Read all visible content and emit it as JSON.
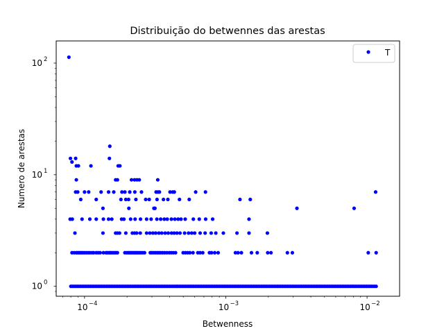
{
  "chart_data": {
    "type": "scatter",
    "title": "Distribuição do betwennes das arestas",
    "xlabel": "Betwenness",
    "ylabel": "Numero de arestas",
    "xscale": "log",
    "yscale": "log",
    "xlim": [
      6.3e-05,
      0.017
    ],
    "ylim": [
      0.815,
      158
    ],
    "x_ticks": [
      {
        "value": 0.0001,
        "base": "10",
        "exp": "−4"
      },
      {
        "value": 0.001,
        "base": "10",
        "exp": "−3"
      },
      {
        "value": 0.01,
        "base": "10",
        "exp": "−2"
      }
    ],
    "y_ticks": [
      {
        "value": 1,
        "base": "10",
        "exp": "0"
      },
      {
        "value": 10,
        "base": "10",
        "exp": "1"
      },
      {
        "value": 100,
        "base": "10",
        "exp": "2"
      }
    ],
    "grid": false,
    "legend": {
      "position": "top-right",
      "entries": [
        "T"
      ]
    },
    "marker_color": "#0000ff",
    "series": [
      {
        "name": "T",
        "points": [
          [
            7.75e-05,
            113
          ],
          [
            7.95e-05,
            14
          ],
          [
            8.65e-05,
            14
          ],
          [
            8.15e-05,
            13
          ],
          [
            8.75e-05,
            12
          ],
          [
            9.05e-05,
            12
          ],
          [
            0.000111,
            12
          ],
          [
            0.000151,
            18
          ],
          [
            0.00015,
            14
          ],
          [
            0.000173,
            12
          ],
          [
            0.000178,
            12
          ],
          [
            0.000215,
            9
          ],
          [
            0.000226,
            9
          ],
          [
            0.000235,
            9
          ],
          [
            0.000244,
            9
          ],
          [
            0.00033,
            9
          ],
          [
            8.75e-05,
            9
          ],
          [
            0.000166,
            9
          ],
          [
            0.000171,
            9
          ],
          [
            8.65e-05,
            7
          ],
          [
            8.95e-05,
            7
          ],
          [
            0.0001,
            7
          ],
          [
            0.000107,
            7
          ],
          [
            0.000131,
            7
          ],
          [
            0.000148,
            7
          ],
          [
            0.000161,
            7
          ],
          [
            0.000184,
            7
          ],
          [
            0.000193,
            7
          ],
          [
            0.000209,
            7
          ],
          [
            0.000227,
            7
          ],
          [
            0.000253,
            7
          ],
          [
            0.000321,
            7
          ],
          [
            0.000331,
            7
          ],
          [
            0.000339,
            7
          ],
          [
            0.000403,
            7
          ],
          [
            0.000421,
            7
          ],
          [
            0.000432,
            7
          ],
          [
            0.000612,
            7
          ],
          [
            0.000718,
            7
          ],
          [
            0.0115,
            7
          ],
          [
            9.4e-05,
            6
          ],
          [
            0.000121,
            6
          ],
          [
            0.000181,
            6
          ],
          [
            0.000196,
            6
          ],
          [
            0.000205,
            6
          ],
          [
            0.000231,
            6
          ],
          [
            0.000271,
            6
          ],
          [
            0.000287,
            6
          ],
          [
            0.000326,
            6
          ],
          [
            0.000362,
            6
          ],
          [
            0.000389,
            6
          ],
          [
            0.00047,
            6
          ],
          [
            0.000551,
            6
          ],
          [
            0.00126,
            6
          ],
          [
            0.00149,
            6
          ],
          [
            0.000135,
            5
          ],
          [
            0.000206,
            5
          ],
          [
            0.000315,
            5
          ],
          [
            0.00031,
            5
          ],
          [
            0.00319,
            5
          ],
          [
            0.0081,
            5
          ],
          [
            7.91e-05,
            4
          ],
          [
            8.19e-05,
            4
          ],
          [
            9.6e-05,
            4
          ],
          [
            0.000109,
            4
          ],
          [
            0.000121,
            4
          ],
          [
            0.000136,
            4
          ],
          [
            0.000148,
            4
          ],
          [
            0.000156,
            4
          ],
          [
            0.000183,
            4
          ],
          [
            0.00019,
            4
          ],
          [
            0.000212,
            4
          ],
          [
            0.000228,
            4
          ],
          [
            0.000249,
            4
          ],
          [
            0.000275,
            4
          ],
          [
            0.000296,
            4
          ],
          [
            0.000325,
            4
          ],
          [
            0.000346,
            4
          ],
          [
            0.000367,
            4
          ],
          [
            0.000385,
            4
          ],
          [
            0.000412,
            4
          ],
          [
            0.000436,
            4
          ],
          [
            0.00046,
            4
          ],
          [
            0.000482,
            4
          ],
          [
            0.000516,
            4
          ],
          [
            0.000589,
            4
          ],
          [
            0.000649,
            4
          ],
          [
            0.00072,
            4
          ],
          [
            0.000807,
            4
          ],
          [
            0.00146,
            4
          ],
          [
            8.55e-05,
            3
          ],
          [
            0.000135,
            3
          ],
          [
            0.000166,
            3
          ],
          [
            0.000171,
            3
          ],
          [
            0.000177,
            3
          ],
          [
            0.000196,
            3
          ],
          [
            0.000218,
            3
          ],
          [
            0.000226,
            3
          ],
          [
            0.000234,
            3
          ],
          [
            0.000248,
            3
          ],
          [
            0.000275,
            3
          ],
          [
            0.00029,
            3
          ],
          [
            0.000305,
            3
          ],
          [
            0.000319,
            3
          ],
          [
            0.000336,
            3
          ],
          [
            0.000352,
            3
          ],
          [
            0.000372,
            3
          ],
          [
            0.000391,
            3
          ],
          [
            0.000413,
            3
          ],
          [
            0.000431,
            3
          ],
          [
            0.000451,
            3
          ],
          [
            0.000474,
            3
          ],
          [
            0.000511,
            3
          ],
          [
            0.000545,
            3
          ],
          [
            0.000574,
            3
          ],
          [
            0.000602,
            3
          ],
          [
            0.000658,
            3
          ],
          [
            0.000714,
            3
          ],
          [
            0.000788,
            3
          ],
          [
            0.00085,
            3
          ],
          [
            0.000961,
            3
          ],
          [
            0.0012,
            3
          ],
          [
            0.00146,
            3
          ],
          [
            0.00197,
            3
          ],
          [
            8.15e-05,
            2
          ],
          [
            8.45e-05,
            2
          ],
          [
            8.75e-05,
            2
          ],
          [
            8.95e-05,
            2
          ],
          [
            9.15e-05,
            2
          ],
          [
            9.35e-05,
            2
          ],
          [
            9.55e-05,
            2
          ],
          [
            9.75e-05,
            2
          ],
          [
            0.0001,
            2
          ],
          [
            0.000103,
            2
          ],
          [
            0.000106,
            2
          ],
          [
            0.000109,
            2
          ],
          [
            0.000113,
            2
          ],
          [
            0.000116,
            2
          ],
          [
            0.000121,
            2
          ],
          [
            0.000125,
            2
          ],
          [
            0.000129,
            2
          ],
          [
            0.000136,
            2
          ],
          [
            0.000142,
            2
          ],
          [
            0.000145,
            2
          ],
          [
            0.000149,
            2
          ],
          [
            0.000152,
            2
          ],
          [
            0.000155,
            2
          ],
          [
            0.000159,
            2
          ],
          [
            0.000163,
            2
          ],
          [
            0.000167,
            2
          ],
          [
            0.000171,
            2
          ],
          [
            0.000193,
            2
          ],
          [
            0.000199,
            2
          ],
          [
            0.000204,
            2
          ],
          [
            0.000209,
            2
          ],
          [
            0.000214,
            2
          ],
          [
            0.000219,
            2
          ],
          [
            0.000224,
            2
          ],
          [
            0.000229,
            2
          ],
          [
            0.000234,
            2
          ],
          [
            0.000239,
            2
          ],
          [
            0.000245,
            2
          ],
          [
            0.000251,
            2
          ],
          [
            0.000258,
            2
          ],
          [
            0.000266,
            2
          ],
          [
            0.000292,
            2
          ],
          [
            0.0003,
            2
          ],
          [
            0.000309,
            2
          ],
          [
            0.000318,
            2
          ],
          [
            0.000327,
            2
          ],
          [
            0.000336,
            2
          ],
          [
            0.000346,
            2
          ],
          [
            0.000357,
            2
          ],
          [
            0.000369,
            2
          ],
          [
            0.000383,
            2
          ],
          [
            0.000398,
            2
          ],
          [
            0.000411,
            2
          ],
          [
            0.000425,
            2
          ],
          [
            0.000441,
            2
          ],
          [
            0.000499,
            2
          ],
          [
            0.000518,
            2
          ],
          [
            0.000537,
            2
          ],
          [
            0.000557,
            2
          ],
          [
            0.000586,
            2
          ],
          [
            0.000634,
            2
          ],
          [
            0.000658,
            2
          ],
          [
            0.000687,
            2
          ],
          [
            0.000766,
            2
          ],
          [
            0.000793,
            2
          ],
          [
            0.000835,
            2
          ],
          [
            0.000883,
            2
          ],
          [
            0.00117,
            2
          ],
          [
            0.00122,
            2
          ],
          [
            0.00129,
            2
          ],
          [
            0.00152,
            2
          ],
          [
            0.00167,
            2
          ],
          [
            0.00198,
            2
          ],
          [
            0.00209,
            2
          ],
          [
            0.00273,
            2
          ],
          [
            0.00296,
            2
          ],
          [
            0.0102,
            2
          ],
          [
            0.0116,
            2
          ]
        ],
        "dense_row": {
          "y": 1,
          "x_from": 8e-05,
          "x_to": 0.0116
        }
      }
    ]
  }
}
